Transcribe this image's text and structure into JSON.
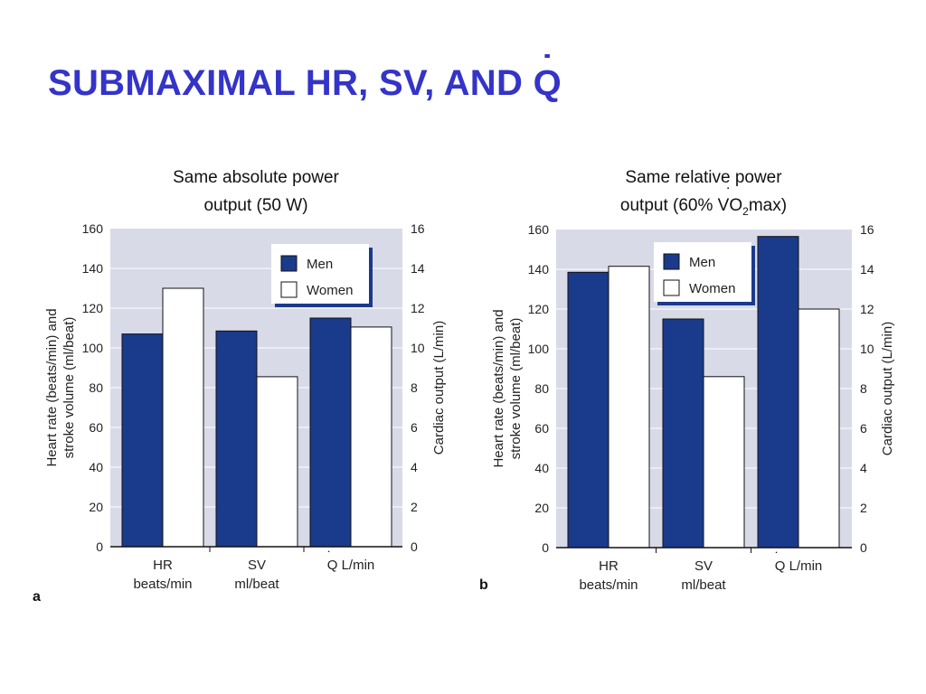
{
  "slide": {
    "title_main": "SUBMAXIMAL HR, SV, AND ",
    "title_q": "Q",
    "title_q_dot": "˙"
  },
  "colors": {
    "title": "#3434c8",
    "men": "#1a3a8c",
    "women": "#ffffff",
    "plot_bg": "#d9dae8",
    "grid": "#ffffff",
    "legend_shadow": "#1a3a8c"
  },
  "chart_data": [
    {
      "type": "bar",
      "panel_label": "a",
      "title_lines": [
        "Same absolute power",
        "output (50 W)"
      ],
      "categories": [
        {
          "line1": "HR",
          "line2": "beats/min"
        },
        {
          "line1": "SV",
          "line2": "ml/beat"
        },
        {
          "line1": "Q",
          "line1_dot": "˙",
          "line1_rest": " L/min",
          "line2": ""
        }
      ],
      "series": [
        {
          "name": "Men",
          "values": [
            107,
            108.5,
            115
          ]
        },
        {
          "name": "Women",
          "values": [
            130,
            85.5,
            110.5
          ]
        }
      ],
      "ylabel_left_lines": [
        "Heart rate (beats/min) and",
        "stroke volume (ml/beat)"
      ],
      "ylabel_right": "Cardiac output (L/min)",
      "ylim": [
        0,
        160
      ],
      "yticks_left": [
        "0",
        "20",
        "40",
        "60",
        "80",
        "100",
        "120",
        "140",
        "160"
      ],
      "yticks_right": [
        "0",
        "2",
        "4",
        "6",
        "8",
        "10",
        "12",
        "14",
        "16"
      ],
      "grid": true,
      "legend_position": "top-right"
    },
    {
      "type": "bar",
      "panel_label": "b",
      "title_lines": [
        "Same relative power",
        "output (60% ",
        "V",
        "O",
        "2",
        "max)"
      ],
      "title_line1": "Same relative power",
      "title_line2_pre": "output (60% ",
      "title_line2_v": "V",
      "title_line2_vdot": "˙",
      "title_line2_o": "O",
      "title_line2_sub": "2",
      "title_line2_post": "max)",
      "categories": [
        {
          "line1": "HR",
          "line2": "beats/min"
        },
        {
          "line1": "SV",
          "line2": "ml/beat"
        },
        {
          "line1": "Q",
          "line1_dot": "˙",
          "line1_rest": " L/min",
          "line2": ""
        }
      ],
      "series": [
        {
          "name": "Men",
          "values": [
            138.5,
            115,
            156.5
          ]
        },
        {
          "name": "Women",
          "values": [
            141.5,
            86,
            120
          ]
        }
      ],
      "ylabel_left_lines": [
        "Heart rate (beats/min) and",
        "stroke volume (ml/beat)"
      ],
      "ylabel_right": "Cardiac output (L/min)",
      "ylim": [
        0,
        160
      ],
      "yticks_left": [
        "0",
        "20",
        "40",
        "60",
        "80",
        "100",
        "120",
        "140",
        "160"
      ],
      "yticks_right": [
        "0",
        "2",
        "4",
        "6",
        "8",
        "10",
        "12",
        "14",
        "16"
      ],
      "grid": true,
      "legend_position": "top-right"
    }
  ]
}
